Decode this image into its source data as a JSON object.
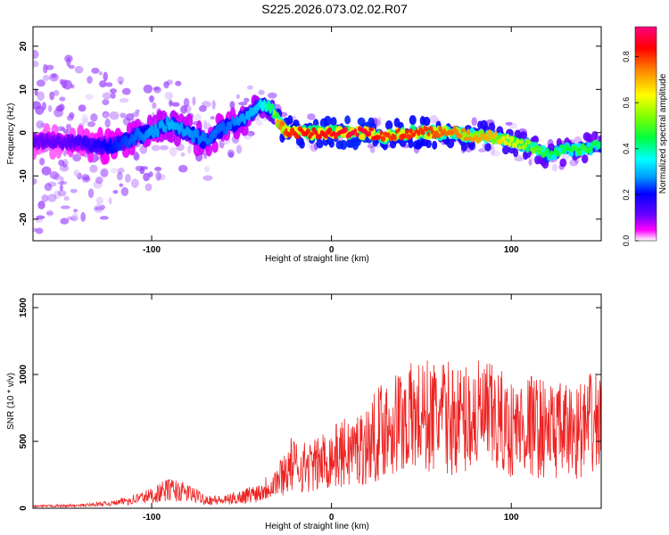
{
  "figure_title": "S225.2026.073.02.02.R07",
  "chart_data": [
    {
      "type": "heatmap",
      "title": "S225.2026.073.02.02.R07",
      "xlabel": "Height of straight line (km)",
      "ylabel": "Frequency (Hz)",
      "xlim": [
        -166,
        150
      ],
      "ylim": [
        -25,
        24.5
      ],
      "xticks": [
        -100,
        0,
        100
      ],
      "yticks": [
        -20,
        -10,
        0,
        10,
        20
      ],
      "colorbar": {
        "label": "Normalized spectral amplitude",
        "range": [
          0,
          0.93
        ],
        "ticks": [
          0.0,
          0.2,
          0.4,
          0.6,
          0.8
        ],
        "colormap": [
          "#ffffff",
          "#ff00ff",
          "#6a00ff",
          "#0000ff",
          "#00a0ff",
          "#00ffff",
          "#00ff40",
          "#80ff00",
          "#ffff00",
          "#ff8000",
          "#ff0000",
          "#ff0080"
        ]
      },
      "ridge": {
        "x": [
          -166,
          -150,
          -130,
          -120,
          -110,
          -100,
          -90,
          -80,
          -70,
          -60,
          -50,
          -40,
          -33,
          -30,
          -25,
          -20,
          -10,
          0,
          10,
          20,
          30,
          40,
          50,
          60,
          70,
          80,
          90,
          100,
          110,
          120,
          130,
          140,
          150
        ],
        "freq": [
          -2,
          -2,
          -3,
          -3,
          -1,
          0,
          2,
          0,
          -2,
          1,
          3,
          6,
          6,
          3,
          0,
          0,
          0,
          0,
          0,
          0,
          -1,
          0,
          0,
          0,
          0,
          -1,
          -1,
          -2,
          -3,
          -5,
          -4,
          -4,
          -3
        ],
        "amplitude": [
          0.12,
          0.12,
          0.18,
          0.22,
          0.25,
          0.28,
          0.3,
          0.28,
          0.26,
          0.25,
          0.28,
          0.32,
          0.45,
          0.7,
          0.82,
          0.82,
          0.85,
          0.85,
          0.88,
          0.88,
          0.8,
          0.82,
          0.82,
          0.78,
          0.75,
          0.72,
          0.7,
          0.62,
          0.55,
          0.45,
          0.45,
          0.48,
          0.42
        ]
      }
    },
    {
      "type": "line",
      "xlabel": "Height of straight line (km)",
      "ylabel": "SNR (10 * v/v)",
      "xlim": [
        -166,
        150
      ],
      "ylim": [
        0,
        1600
      ],
      "xticks": [
        -100,
        0,
        100
      ],
      "yticks": [
        0,
        500,
        1000,
        1500
      ],
      "series": [
        {
          "name": "SNR",
          "color": "#ee2222",
          "envelope_x": [
            -166,
            -140,
            -120,
            -100,
            -90,
            -80,
            -70,
            -60,
            -50,
            -40,
            -30,
            -22,
            -20,
            -10,
            0,
            10,
            20,
            30,
            40,
            50,
            60,
            70,
            80,
            90,
            100,
            110,
            120,
            130,
            140,
            150
          ],
          "envelope_y": [
            15,
            20,
            40,
            100,
            150,
            120,
            70,
            60,
            90,
            130,
            220,
            350,
            330,
            330,
            400,
            450,
            500,
            650,
            700,
            720,
            720,
            700,
            720,
            700,
            620,
            660,
            620,
            600,
            620,
            700
          ]
        }
      ]
    }
  ]
}
